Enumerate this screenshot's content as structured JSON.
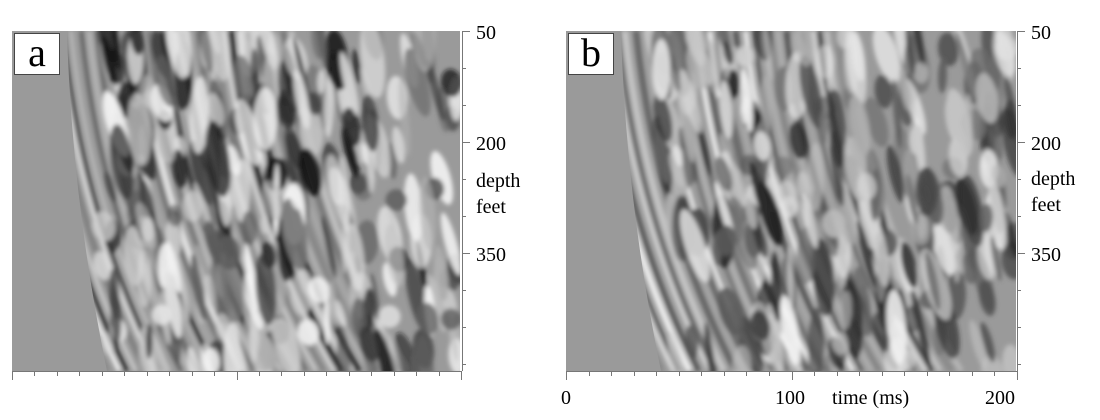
{
  "panels": [
    {
      "label": "a",
      "seed": 3,
      "contrast": 1.15
    },
    {
      "label": "b",
      "seed": 11,
      "contrast": 0.95
    }
  ],
  "depth_axis": {
    "title_line1": "depth",
    "title_line2": "feet",
    "ticks": [
      "50",
      "200",
      "350"
    ]
  },
  "time_axis": {
    "ticks": [
      "0",
      "100",
      "200"
    ],
    "title": "time (ms)"
  },
  "colors": {
    "background": "#ffffff",
    "image_gray": "#9a9a9a",
    "axis": "#777777"
  }
}
